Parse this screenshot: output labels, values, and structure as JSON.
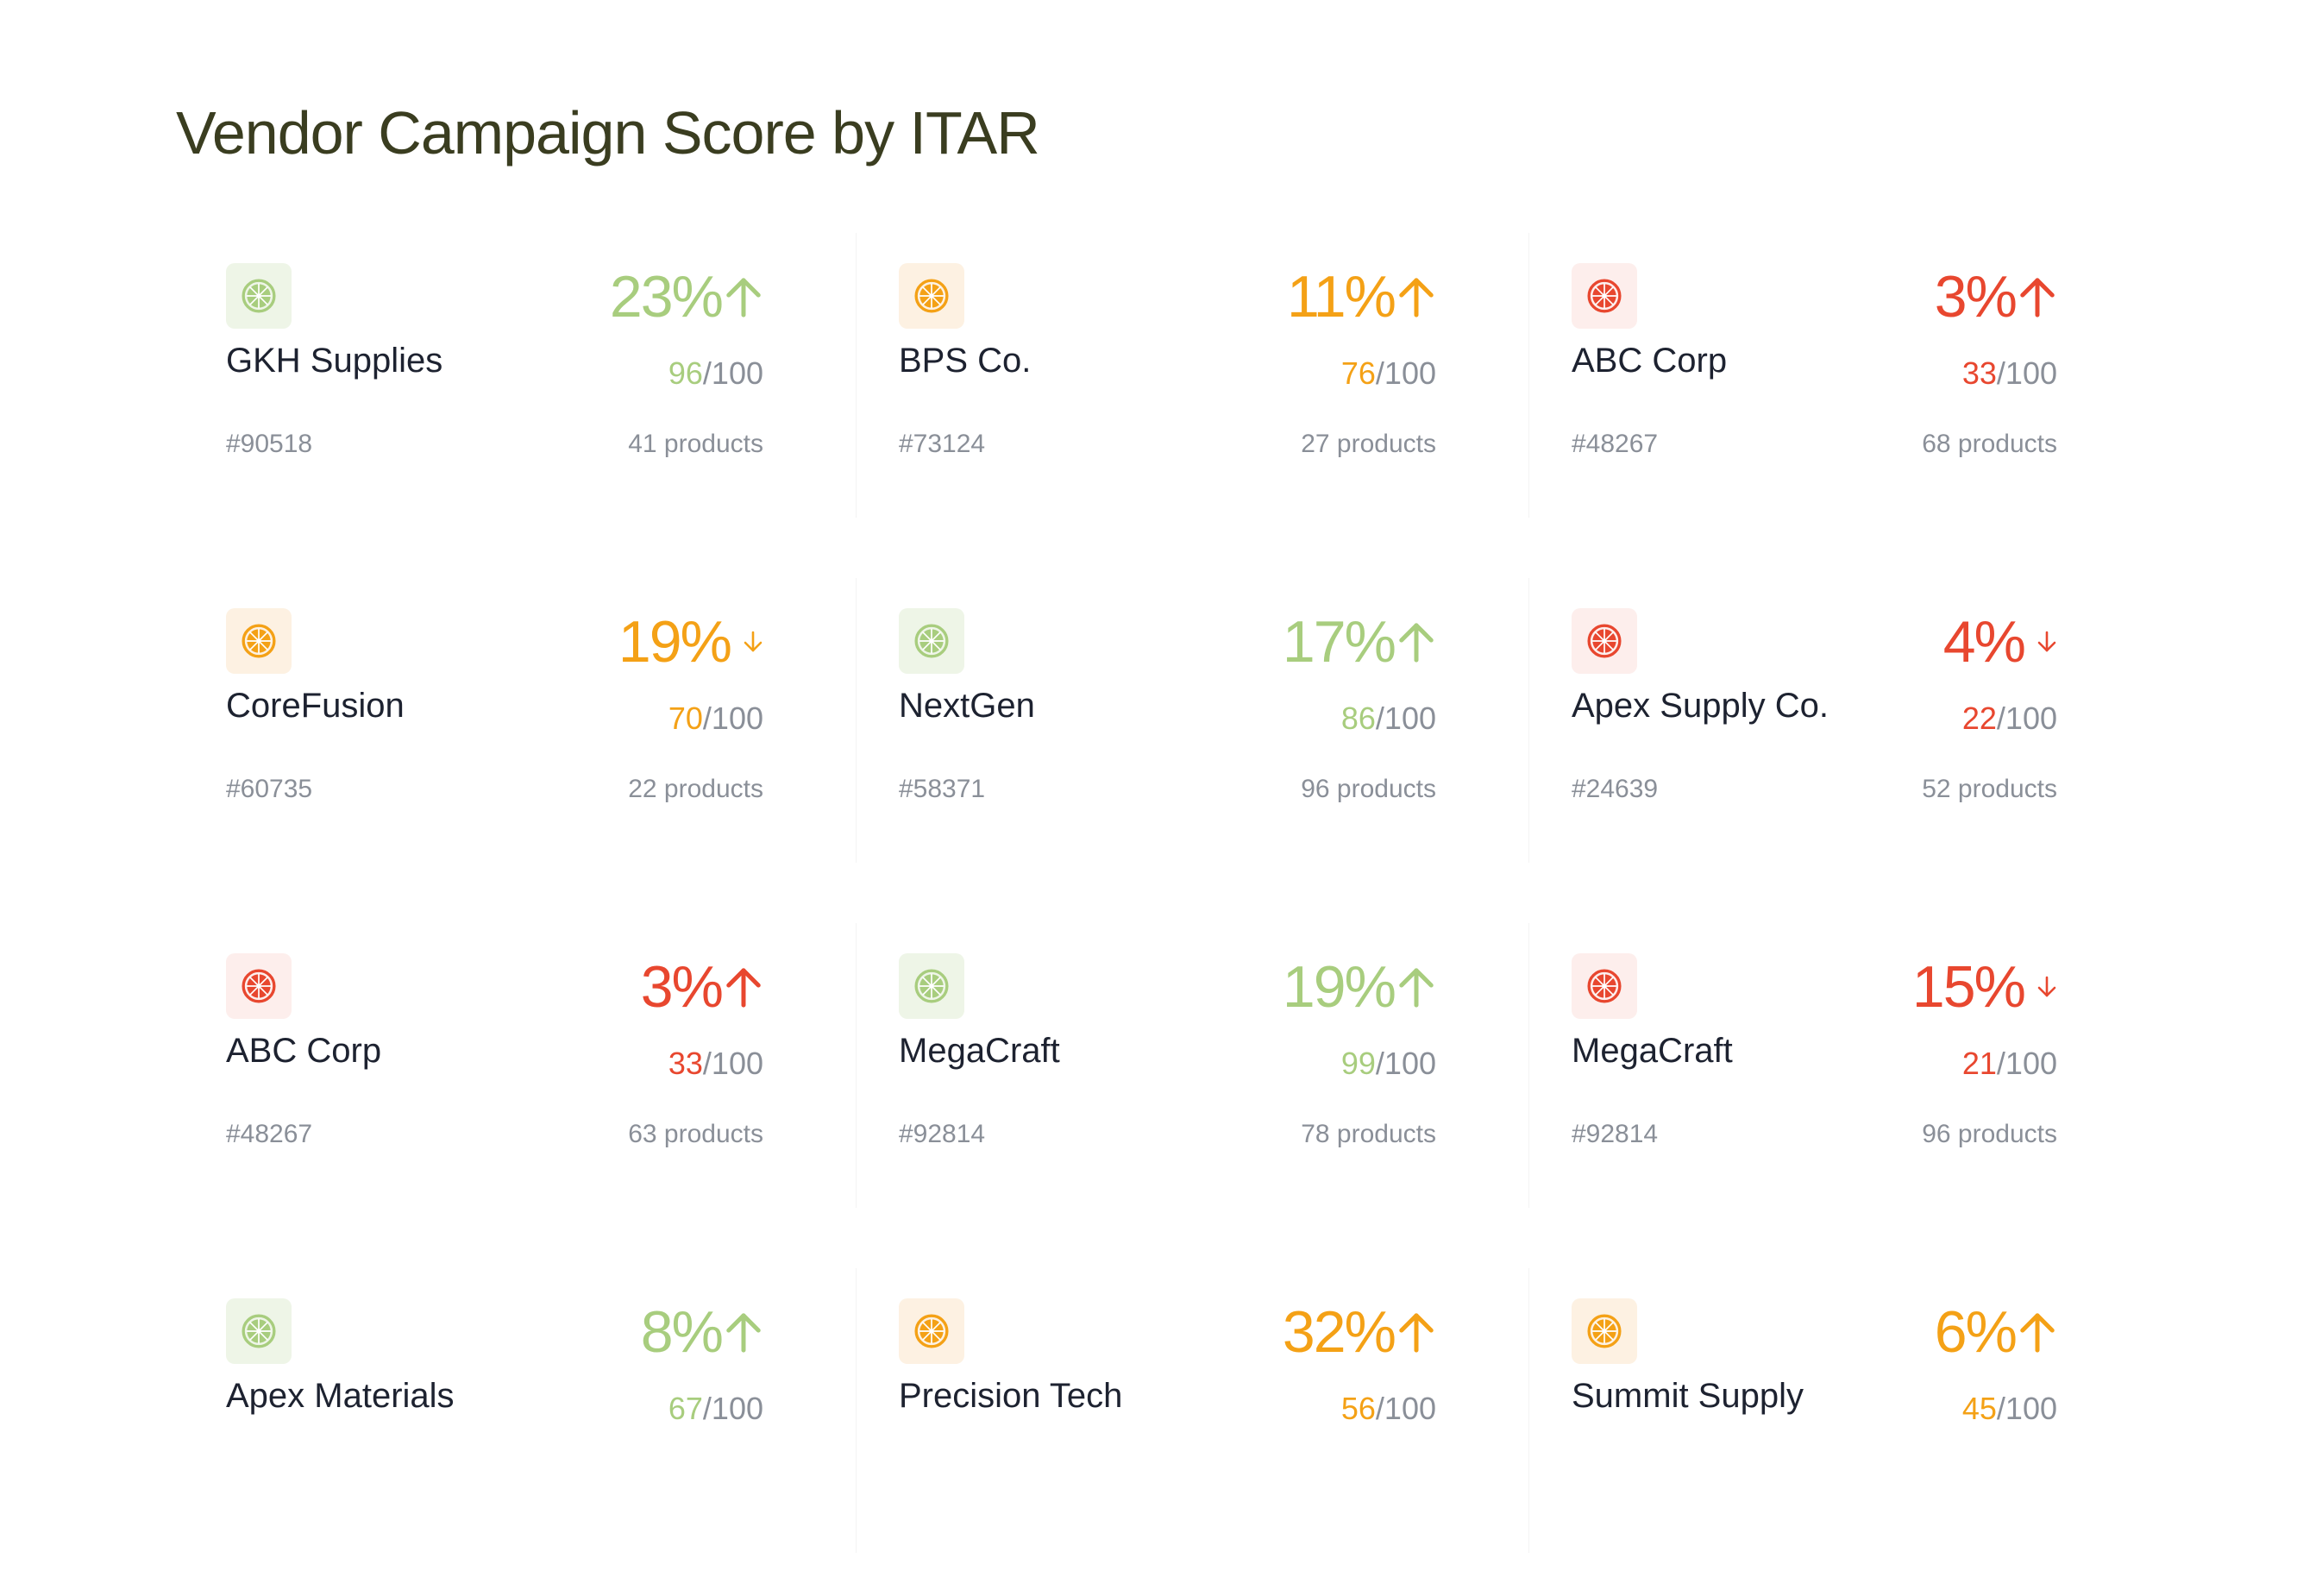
{
  "page": {
    "title": "Vendor Campaign Score by ITAR"
  },
  "colors": {
    "green": "#a8cd7e",
    "orange": "#f4a116",
    "red": "#e8472f",
    "muted": "#8a8f98",
    "title": "#3a3d20"
  },
  "vendors": [
    {
      "name": "GKH Supplies",
      "code": "#90518",
      "percent": "23%",
      "trend": "up",
      "score": "96",
      "score_max": "/100",
      "products": "41 products",
      "tone": "green",
      "icon": "citrus-slice-icon"
    },
    {
      "name": "BPS Co.",
      "code": "#73124",
      "percent": "11%",
      "trend": "up",
      "score": "76",
      "score_max": "/100",
      "products": "27 products",
      "tone": "orange",
      "icon": "citrus-slice-icon"
    },
    {
      "name": "ABC Corp",
      "code": "#48267",
      "percent": "3%",
      "trend": "up",
      "score": "33",
      "score_max": "/100",
      "products": "68 products",
      "tone": "red",
      "icon": "citrus-slice-icon"
    },
    {
      "name": "CoreFusion",
      "code": "#60735",
      "percent": "19%",
      "trend": "down",
      "score": "70",
      "score_max": "/100",
      "products": "22 products",
      "tone": "orange",
      "icon": "citrus-slice-icon"
    },
    {
      "name": "NextGen",
      "code": "#58371",
      "percent": "17%",
      "trend": "up",
      "score": "86",
      "score_max": "/100",
      "products": "96 products",
      "tone": "green",
      "icon": "citrus-slice-icon"
    },
    {
      "name": "Apex Supply Co.",
      "code": "#24639",
      "percent": "4%",
      "trend": "down",
      "score": "22",
      "score_max": "/100",
      "products": "52 products",
      "tone": "red",
      "icon": "citrus-slice-icon"
    },
    {
      "name": "ABC Corp",
      "code": "#48267",
      "percent": "3%",
      "trend": "up",
      "score": "33",
      "score_max": "/100",
      "products": "63 products",
      "tone": "red",
      "icon": "citrus-slice-icon"
    },
    {
      "name": "MegaCraft",
      "code": "#92814",
      "percent": "19%",
      "trend": "up",
      "score": "99",
      "score_max": "/100",
      "products": "78 products",
      "tone": "green",
      "icon": "citrus-slice-icon"
    },
    {
      "name": "MegaCraft",
      "code": "#92814",
      "percent": "15%",
      "trend": "down",
      "score": "21",
      "score_max": "/100",
      "products": "96 products",
      "tone": "red",
      "icon": "citrus-slice-icon"
    },
    {
      "name": "Apex Materials",
      "code": "",
      "percent": "8%",
      "trend": "up",
      "score": "67",
      "score_max": "/100",
      "products": "",
      "tone": "green",
      "icon": "citrus-slice-icon"
    },
    {
      "name": "Precision Tech",
      "code": "",
      "percent": "32%",
      "trend": "up",
      "score": "56",
      "score_max": "/100",
      "products": "",
      "tone": "orange",
      "icon": "citrus-slice-icon"
    },
    {
      "name": "Summit Supply",
      "code": "",
      "percent": "6%",
      "trend": "up",
      "score": "45",
      "score_max": "/100",
      "products": "",
      "tone": "orange",
      "icon": "citrus-slice-icon"
    }
  ]
}
